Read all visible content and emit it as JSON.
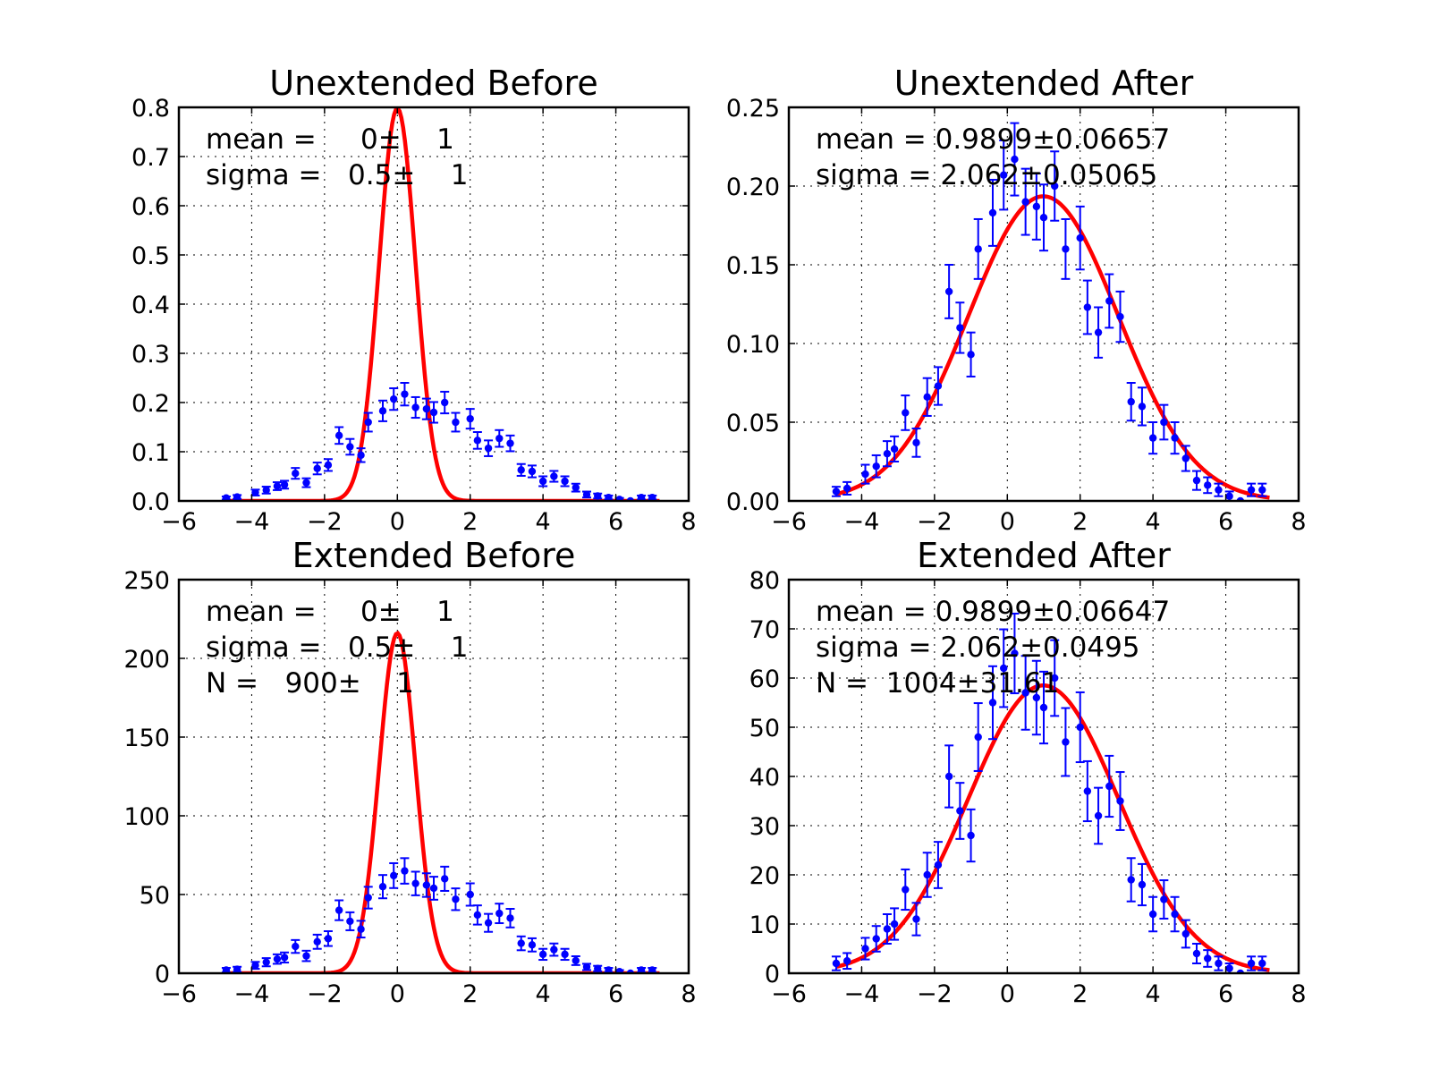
{
  "chart_data": [
    {
      "type": "scatter",
      "title": "Unextended Before",
      "xlim": [
        -6,
        8
      ],
      "ylim": [
        0,
        0.8
      ],
      "xticks": [
        -6,
        -4,
        -2,
        0,
        2,
        4,
        6,
        8
      ],
      "yticks": [
        0.0,
        0.1,
        0.2,
        0.3,
        0.4,
        0.5,
        0.6,
        0.7,
        0.8
      ],
      "ytick_labels": [
        "0.0",
        "0.1",
        "0.2",
        "0.3",
        "0.4",
        "0.5",
        "0.6",
        "0.7",
        "0.8"
      ],
      "grid": true,
      "annotations": [
        "mean =     0±    1",
        "sigma =   0.5±    1"
      ],
      "fit": {
        "mean": 0,
        "sigma": 0.5,
        "amplitude": 0.798
      },
      "series": [
        {
          "x": [
            -4.7,
            -4.4,
            -3.9,
            -3.6,
            -3.3,
            -3.1,
            -2.8,
            -2.5,
            -2.2,
            -1.9,
            -1.6,
            -1.3,
            -1.0,
            -0.8,
            -0.4,
            -0.1,
            0.2,
            0.5,
            0.8,
            1.0,
            1.3,
            1.6,
            2.0,
            2.2,
            2.5,
            2.8,
            3.1,
            3.4,
            3.7,
            4.0,
            4.3,
            4.6,
            4.9,
            5.2,
            5.5,
            5.8,
            6.1,
            6.4,
            6.7,
            7.0
          ],
          "y": [
            0.006,
            0.008,
            0.017,
            0.022,
            0.03,
            0.033,
            0.056,
            0.037,
            0.066,
            0.073,
            0.133,
            0.11,
            0.093,
            0.16,
            0.183,
            0.207,
            0.217,
            0.19,
            0.187,
            0.18,
            0.2,
            0.16,
            0.167,
            0.123,
            0.107,
            0.127,
            0.117,
            0.063,
            0.06,
            0.04,
            0.05,
            0.04,
            0.027,
            0.013,
            0.01,
            0.007,
            0.003,
            0.0,
            0.007,
            0.007
          ],
          "err": [
            0.003,
            0.004,
            0.006,
            0.007,
            0.008,
            0.008,
            0.011,
            0.009,
            0.012,
            0.012,
            0.017,
            0.016,
            0.014,
            0.019,
            0.021,
            0.022,
            0.023,
            0.021,
            0.021,
            0.021,
            0.022,
            0.019,
            0.02,
            0.017,
            0.016,
            0.017,
            0.016,
            0.012,
            0.012,
            0.01,
            0.011,
            0.01,
            0.008,
            0.006,
            0.005,
            0.004,
            0.003,
            0.0,
            0.004,
            0.004
          ]
        }
      ]
    },
    {
      "type": "scatter",
      "title": "Unextended After",
      "xlim": [
        -6,
        8
      ],
      "ylim": [
        0,
        0.25
      ],
      "xticks": [
        -6,
        -4,
        -2,
        0,
        2,
        4,
        6,
        8
      ],
      "yticks": [
        0.0,
        0.05,
        0.1,
        0.15,
        0.2,
        0.25
      ],
      "ytick_labels": [
        "0.00",
        "0.05",
        "0.10",
        "0.15",
        "0.20",
        "0.25"
      ],
      "grid": true,
      "annotations": [
        "mean = 0.9899±0.06657",
        "sigma = 2.062±0.05065"
      ],
      "fit": {
        "mean": 0.9899,
        "sigma": 2.062,
        "amplitude": 0.1935
      },
      "series": [
        {
          "x": [
            -4.7,
            -4.4,
            -3.9,
            -3.6,
            -3.3,
            -3.1,
            -2.8,
            -2.5,
            -2.2,
            -1.9,
            -1.6,
            -1.3,
            -1.0,
            -0.8,
            -0.4,
            -0.1,
            0.2,
            0.5,
            0.8,
            1.0,
            1.3,
            1.6,
            2.0,
            2.2,
            2.5,
            2.8,
            3.1,
            3.4,
            3.7,
            4.0,
            4.3,
            4.6,
            4.9,
            5.2,
            5.5,
            5.8,
            6.1,
            6.4,
            6.7,
            7.0
          ],
          "y": [
            0.006,
            0.008,
            0.017,
            0.022,
            0.03,
            0.033,
            0.056,
            0.037,
            0.066,
            0.073,
            0.133,
            0.11,
            0.093,
            0.16,
            0.183,
            0.207,
            0.217,
            0.19,
            0.187,
            0.18,
            0.2,
            0.16,
            0.167,
            0.123,
            0.107,
            0.127,
            0.117,
            0.063,
            0.06,
            0.04,
            0.05,
            0.04,
            0.027,
            0.013,
            0.01,
            0.007,
            0.003,
            0.0,
            0.007,
            0.007
          ],
          "err": [
            0.003,
            0.004,
            0.006,
            0.007,
            0.008,
            0.008,
            0.011,
            0.009,
            0.012,
            0.012,
            0.017,
            0.016,
            0.014,
            0.019,
            0.021,
            0.022,
            0.023,
            0.021,
            0.021,
            0.021,
            0.022,
            0.019,
            0.02,
            0.017,
            0.016,
            0.017,
            0.016,
            0.012,
            0.012,
            0.01,
            0.011,
            0.01,
            0.008,
            0.006,
            0.005,
            0.004,
            0.003,
            0.0,
            0.004,
            0.004
          ]
        }
      ]
    },
    {
      "type": "scatter",
      "title": "Extended Before",
      "xlim": [
        -6,
        8
      ],
      "ylim": [
        0,
        250
      ],
      "xticks": [
        -6,
        -4,
        -2,
        0,
        2,
        4,
        6,
        8
      ],
      "yticks": [
        0,
        50,
        100,
        150,
        200,
        250
      ],
      "ytick_labels": [
        "0",
        "50",
        "100",
        "150",
        "200",
        "250"
      ],
      "grid": true,
      "annotations": [
        "mean =     0±    1",
        "sigma =   0.5±    1",
        "N =   900±    1"
      ],
      "fit": {
        "mean": 0,
        "sigma": 0.5,
        "amplitude": 216
      },
      "series": [
        {
          "x": [
            -4.7,
            -4.4,
            -3.9,
            -3.6,
            -3.3,
            -3.1,
            -2.8,
            -2.5,
            -2.2,
            -1.9,
            -1.6,
            -1.3,
            -1.0,
            -0.8,
            -0.4,
            -0.1,
            0.2,
            0.5,
            0.8,
            1.0,
            1.3,
            1.6,
            2.0,
            2.2,
            2.5,
            2.8,
            3.1,
            3.4,
            3.7,
            4.0,
            4.3,
            4.6,
            4.9,
            5.2,
            5.5,
            5.8,
            6.1,
            6.4,
            6.7,
            7.0
          ],
          "y": [
            2,
            2.5,
            5,
            7,
            9,
            10,
            17,
            11,
            20,
            22,
            40,
            33,
            28,
            48,
            55,
            62,
            65,
            57,
            56,
            54,
            60,
            47,
            50,
            37,
            32,
            38,
            35,
            19,
            18,
            12,
            15,
            12,
            8,
            4,
            3,
            2,
            1,
            0,
            2,
            2
          ],
          "err": [
            1.4,
            1.6,
            2.2,
            2.6,
            3.0,
            3.2,
            4.1,
            3.3,
            4.5,
            4.7,
            6.3,
            5.7,
            5.3,
            6.9,
            7.4,
            7.9,
            8.1,
            7.5,
            7.5,
            7.3,
            7.7,
            6.9,
            7.1,
            6.1,
            5.7,
            6.2,
            5.9,
            4.4,
            4.2,
            3.5,
            3.9,
            3.5,
            2.8,
            2.0,
            1.7,
            1.4,
            1.0,
            0,
            1.4,
            1.4
          ]
        }
      ]
    },
    {
      "type": "scatter",
      "title": "Extended After",
      "xlim": [
        -6,
        8
      ],
      "ylim": [
        0,
        80
      ],
      "xticks": [
        -6,
        -4,
        -2,
        0,
        2,
        4,
        6,
        8
      ],
      "yticks": [
        0,
        10,
        20,
        30,
        40,
        50,
        60,
        70,
        80
      ],
      "ytick_labels": [
        "0",
        "10",
        "20",
        "30",
        "40",
        "50",
        "60",
        "70",
        "80"
      ],
      "grid": true,
      "annotations": [
        "mean = 0.9899±0.06647",
        "sigma = 2.062±0.0495",
        "N =  1004±31.61"
      ],
      "fit": {
        "mean": 0.9899,
        "sigma": 2.062,
        "amplitude": 58.5
      },
      "series": [
        {
          "x": [
            -4.7,
            -4.4,
            -3.9,
            -3.6,
            -3.3,
            -3.1,
            -2.8,
            -2.5,
            -2.2,
            -1.9,
            -1.6,
            -1.3,
            -1.0,
            -0.8,
            -0.4,
            -0.1,
            0.2,
            0.5,
            0.8,
            1.0,
            1.3,
            1.6,
            2.0,
            2.2,
            2.5,
            2.8,
            3.1,
            3.4,
            3.7,
            4.0,
            4.3,
            4.6,
            4.9,
            5.2,
            5.5,
            5.8,
            6.1,
            6.4,
            6.7,
            7.0
          ],
          "y": [
            2,
            2.5,
            5,
            7,
            9,
            10,
            17,
            11,
            20,
            22,
            40,
            33,
            28,
            48,
            55,
            62,
            65,
            57,
            56,
            54,
            60,
            47,
            50,
            37,
            32,
            38,
            35,
            19,
            18,
            12,
            15,
            12,
            8,
            4,
            3,
            2,
            1,
            0,
            2,
            2
          ],
          "err": [
            1.4,
            1.6,
            2.2,
            2.6,
            3.0,
            3.2,
            4.1,
            3.3,
            4.5,
            4.7,
            6.3,
            5.7,
            5.3,
            6.9,
            7.4,
            7.9,
            8.1,
            7.5,
            7.5,
            7.3,
            7.7,
            6.9,
            7.1,
            6.1,
            5.7,
            6.2,
            5.9,
            4.4,
            4.2,
            3.5,
            3.9,
            3.5,
            2.8,
            2.0,
            1.7,
            1.4,
            1.0,
            0,
            1.4,
            1.4
          ]
        }
      ]
    }
  ]
}
